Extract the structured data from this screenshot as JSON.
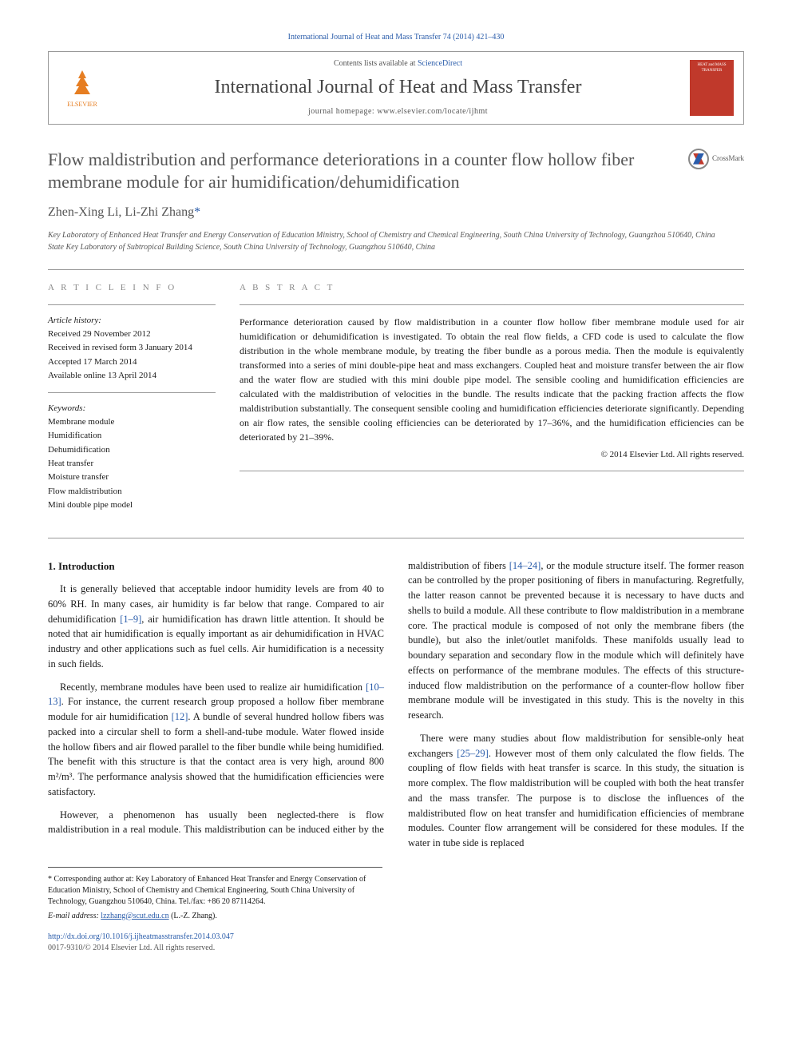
{
  "header": {
    "citation_line": "International Journal of Heat and Mass Transfer 74 (2014) 421–430",
    "contents_text": "Contents lists available at ",
    "contents_link": "ScienceDirect",
    "journal_name": "International Journal of Heat and Mass Transfer",
    "journal_home_prefix": "journal homepage: ",
    "journal_home_url": "www.elsevier.com/locate/ijhmt",
    "elsevier_label": "ELSEVIER",
    "cover_text": "HEAT and MASS TRANSFER",
    "crossmark_label": "CrossMark"
  },
  "title": "Flow maldistribution and performance deteriorations in a counter flow hollow fiber membrane module for air humidification/dehumidification",
  "authors": "Zhen-Xing Li, Li-Zhi Zhang",
  "author_marker": "*",
  "affiliations": [
    "Key Laboratory of Enhanced Heat Transfer and Energy Conservation of Education Ministry, School of Chemistry and Chemical Engineering, South China University of Technology, Guangzhou 510640, China",
    "State Key Laboratory of Subtropical Building Science, South China University of Technology, Guangzhou 510640, China"
  ],
  "article_info": {
    "heading": "A R T I C L E   I N F O",
    "history_label": "Article history:",
    "history": [
      "Received 29 November 2012",
      "Received in revised form 3 January 2014",
      "Accepted 17 March 2014",
      "Available online 13 April 2014"
    ],
    "keywords_label": "Keywords:",
    "keywords": [
      "Membrane module",
      "Humidification",
      "Dehumidification",
      "Heat transfer",
      "Moisture transfer",
      "Flow maldistribution",
      "Mini double pipe model"
    ]
  },
  "abstract": {
    "heading": "A B S T R A C T",
    "text": "Performance deterioration caused by flow maldistribution in a counter flow hollow fiber membrane module used for air humidification or dehumidification is investigated. To obtain the real flow fields, a CFD code is used to calculate the flow distribution in the whole membrane module, by treating the fiber bundle as a porous media. Then the module is equivalently transformed into a series of mini double-pipe heat and mass exchangers. Coupled heat and moisture transfer between the air flow and the water flow are studied with this mini double pipe model. The sensible cooling and humidification efficiencies are calculated with the maldistribution of velocities in the bundle. The results indicate that the packing fraction affects the flow maldistribution substantially. The consequent sensible cooling and humidification efficiencies deteriorate significantly. Depending on air flow rates, the sensible cooling efficiencies can be deteriorated by 17–36%, and the humidification efficiencies can be deteriorated by 21–39%.",
    "copyright": "© 2014 Elsevier Ltd. All rights reserved."
  },
  "section1": {
    "heading": "1. Introduction",
    "p1": "It is generally believed that acceptable indoor humidity levels are from 40 to 60% RH. In many cases, air humidity is far below that range. Compared to air dehumidification [1–9], air humidification has drawn little attention. It should be noted that air humidification is equally important as air dehumidification in HVAC industry and other applications such as fuel cells. Air humidification is a necessity in such fields.",
    "p2": "Recently, membrane modules have been used to realize air humidification [10–13]. For instance, the current research group proposed a hollow fiber membrane module for air humidification [12]. A bundle of several hundred hollow fibers was packed into a circular shell to form a shell-and-tube module. Water flowed inside the hollow fibers and air flowed parallel to the fiber bundle while being humidified. The benefit with this structure is that the contact area is very high, around 800 m²/m³. The performance analysis showed that the humidification efficiencies were satisfactory.",
    "p3": "However, a phenomenon has usually been neglected-there is flow maldistribution in a real module. This maldistribution can be induced either by the maldistribution of fibers [14–24], or the module structure itself. The former reason can be controlled by the proper positioning of fibers in manufacturing. Regretfully, the latter reason cannot be prevented because it is necessary to have ducts and shells to build a module. All these contribute to flow maldistribution in a membrane core. The practical module is composed of not only the membrane fibers (the bundle), but also the inlet/outlet manifolds. These manifolds usually lead to boundary separation and secondary flow in the module which will definitely have effects on performance of the membrane modules. The effects of this structure-induced flow maldistribution on the performance of a counter-flow hollow fiber membrane module will be investigated in this study. This is the novelty in this research.",
    "p4": "There were many studies about flow maldistribution for sensible-only heat exchangers [25–29]. However most of them only calculated the flow fields. The coupling of flow fields with heat transfer is scarce. In this study, the situation is more complex. The flow maldistribution will be coupled with both the heat transfer and the mass transfer. The purpose is to disclose the influences of the maldistributed flow on heat transfer and humidification efficiencies of membrane modules. Counter flow arrangement will be considered for these modules. If the water in tube side is replaced"
  },
  "footnote": {
    "corr": "* Corresponding author at: Key Laboratory of Enhanced Heat Transfer and Energy Conservation of Education Ministry, School of Chemistry and Chemical Engineering, South China University of Technology, Guangzhou 510640, China. Tel./fax: +86 20 87114264.",
    "email_label": "E-mail address: ",
    "email": "lzzhang@scut.edu.cn",
    "email_suffix": " (L.-Z. Zhang).",
    "doi": "http://dx.doi.org/10.1016/j.ijheatmasstransfer.2014.03.047",
    "issn": "0017-9310/© 2014 Elsevier Ltd. All rights reserved."
  },
  "refs": {
    "r1_9": "[1–9]",
    "r10_13": "[10–13]",
    "r12": "[12]",
    "r14_24": "[14–24]",
    "r25_29": "[25–29]"
  }
}
